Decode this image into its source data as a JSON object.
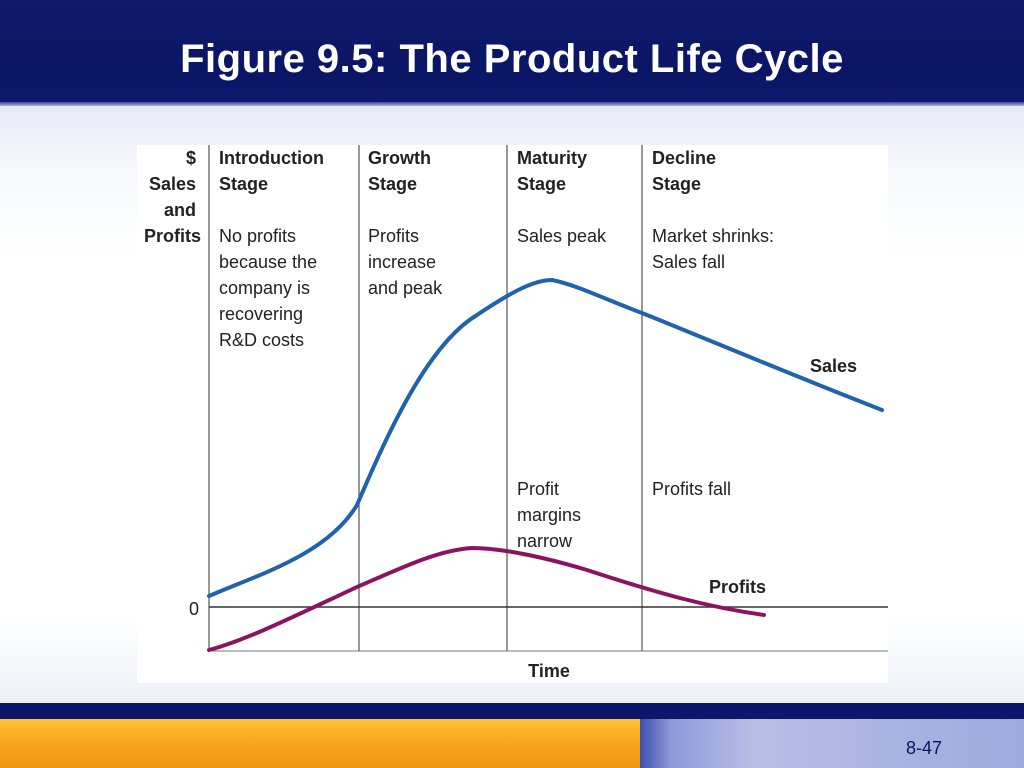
{
  "slide": {
    "title": "Figure 9.5:  The Product Life Cycle",
    "page_number": "8-47"
  },
  "figure": {
    "y_axis_label": [
      "$",
      "Sales",
      "and",
      "Profits"
    ],
    "zero_label": "0",
    "x_axis_label": "Time",
    "stages": [
      {
        "name": [
          "Introduction",
          "Stage"
        ],
        "note_top": [
          "No profits",
          "because the",
          "company is",
          "recovering",
          "R&D costs"
        ],
        "note_bottom": []
      },
      {
        "name": [
          "Growth",
          "Stage"
        ],
        "note_top": [
          "Profits",
          "increase",
          "and peak"
        ],
        "note_bottom": []
      },
      {
        "name": [
          "Maturity",
          "Stage"
        ],
        "note_top": [
          "Sales peak"
        ],
        "note_bottom": [
          "Profit",
          "margins",
          "narrow"
        ]
      },
      {
        "name": [
          "Decline",
          "Stage"
        ],
        "note_top": [
          "Market shrinks:",
          "Sales fall"
        ],
        "note_bottom": [
          "Profits fall"
        ]
      }
    ],
    "curves": [
      {
        "name": "Sales",
        "color": "#1f62ad"
      },
      {
        "name": "Profits",
        "color": "#8b1460"
      }
    ]
  }
}
